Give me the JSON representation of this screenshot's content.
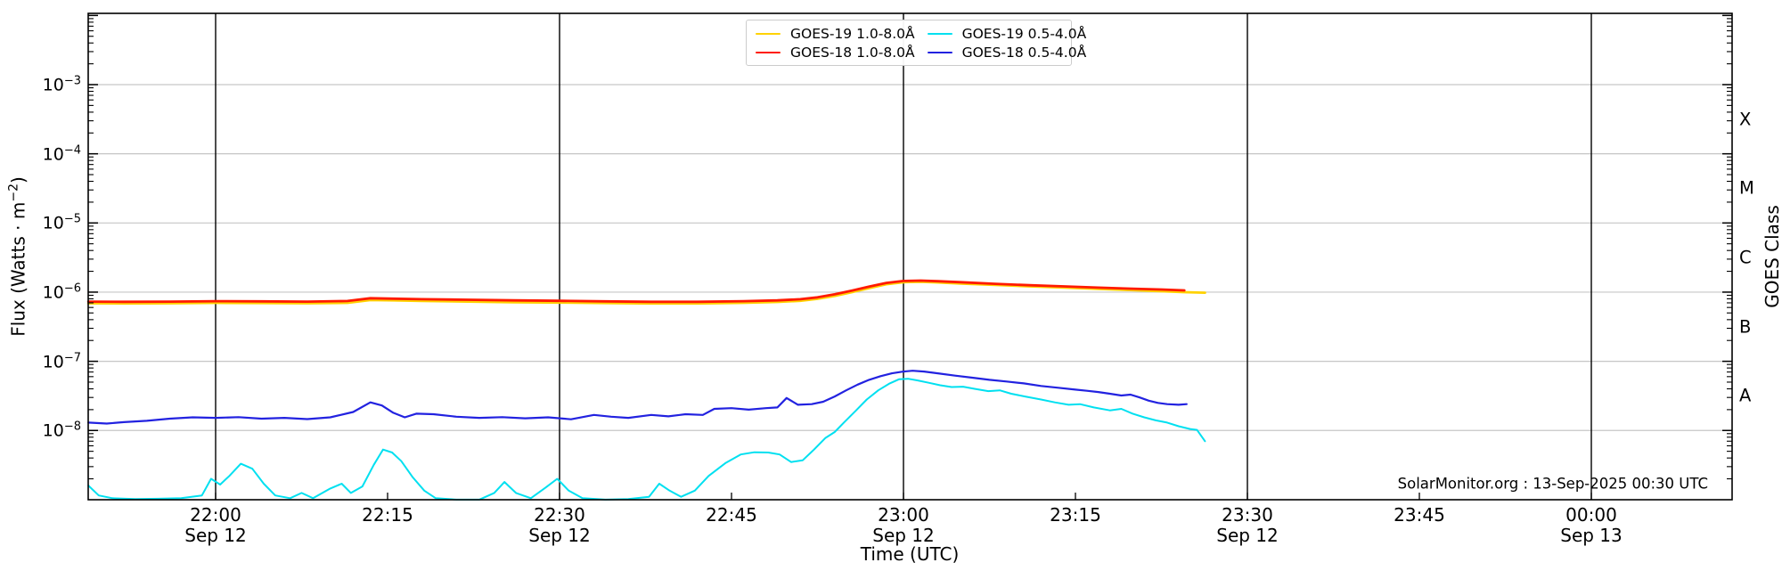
{
  "watermark": "SolarMonitor.org : 13-Sep-2025 00:30 UTC",
  "colors": {
    "background": "#ffffff",
    "frame": "#000000",
    "horizontal_grid": "#c6c6c6",
    "vertical_grid": "#000000",
    "goes19_long": "#ffd200",
    "goes18_long": "#ff1a00",
    "goes19_short": "#00e0f0",
    "goes18_short": "#2222e0"
  },
  "axes": {
    "x_label": "Time (UTC)",
    "y_label_left": {
      "text": "Flux (Watts · m⁻²)",
      "main": "Flux (Watts · m",
      "sup": "−2",
      "close": ")"
    },
    "y_label_right": "GOES Class",
    "x_ticks": [
      {
        "time": "22:00",
        "date": "Sep 12",
        "m": 12,
        "gridline": true
      },
      {
        "time": "22:15",
        "date": "",
        "m": 27,
        "gridline": false
      },
      {
        "time": "22:30",
        "date": "Sep 12",
        "m": 42,
        "gridline": true
      },
      {
        "time": "22:45",
        "date": "",
        "m": 57,
        "gridline": false
      },
      {
        "time": "23:00",
        "date": "Sep 12",
        "m": 72,
        "gridline": true
      },
      {
        "time": "23:15",
        "date": "",
        "m": 87,
        "gridline": false
      },
      {
        "time": "23:30",
        "date": "Sep 12",
        "m": 102,
        "gridline": true
      },
      {
        "time": "23:45",
        "date": "",
        "m": 117,
        "gridline": false
      },
      {
        "time": "00:00",
        "date": "Sep 13",
        "m": 132,
        "gridline": true
      }
    ],
    "y_ticks": [
      {
        "label": "10⁻³",
        "sup": "−3",
        "exp": -3
      },
      {
        "label": "10⁻⁴",
        "sup": "−4",
        "exp": -4
      },
      {
        "label": "10⁻⁵",
        "sup": "−5",
        "exp": -5
      },
      {
        "label": "10⁻⁶",
        "sup": "−6",
        "exp": -6
      },
      {
        "label": "10⁻⁷",
        "sup": "−7",
        "exp": -7
      },
      {
        "label": "10⁻⁸",
        "sup": "−8",
        "exp": -8
      }
    ],
    "class_labels": [
      {
        "label": "X",
        "log_center": -3.5
      },
      {
        "label": "M",
        "log_center": -4.5
      },
      {
        "label": "C",
        "log_center": -5.5
      },
      {
        "label": "B",
        "log_center": -6.5
      },
      {
        "label": "A",
        "log_center": -7.5
      }
    ]
  },
  "legend": [
    {
      "label": "GOES-19 1.0-8.0Å",
      "color": "#ffd200"
    },
    {
      "label": "GOES-18 1.0-8.0Å",
      "color": "#ff1a00"
    },
    {
      "label": "GOES-19 0.5-4.0Å",
      "color": "#00e0f0"
    },
    {
      "label": "GOES-18 0.5-4.0Å",
      "color": "#2222e0"
    }
  ],
  "chart_data": {
    "type": "line",
    "title": "",
    "xlabel": "Time (UTC)",
    "ylabel": "Flux (Watts · m⁻²)",
    "ylabel_right": "GOES Class",
    "y_scale": "log",
    "ylim": [
      1e-09,
      0.01
    ],
    "x_definition": "minutes after 21:48 UTC on 12-Sep-2025",
    "x_range_minutes": [
      0.9,
      143
    ],
    "x_gridline_times": [
      "22:00",
      "22:30",
      "23:00",
      "23:30",
      "00:00"
    ],
    "grid": "horizontal gray at each decade, vertical black every 30 min",
    "legend_position": "upper center",
    "goes_class_bands": {
      "A": [
        1e-08,
        1e-07
      ],
      "B": [
        1e-07,
        1e-06
      ],
      "C": [
        1e-06,
        1e-05
      ],
      "M": [
        1e-05,
        0.0001
      ],
      "X": [
        0.0001,
        0.001
      ]
    },
    "series": [
      {
        "name": "GOES-19 1.0-8.0Å",
        "color": "#ffd200",
        "points": [
          [
            0.9,
            6.9e-07
          ],
          [
            4,
            6.85e-07
          ],
          [
            8,
            6.9e-07
          ],
          [
            12,
            7e-07
          ],
          [
            16,
            6.95e-07
          ],
          [
            20,
            6.9e-07
          ],
          [
            23.5,
            7e-07
          ],
          [
            25.5,
            7.7e-07
          ],
          [
            27.5,
            7.6e-07
          ],
          [
            30,
            7.45e-07
          ],
          [
            34,
            7.3e-07
          ],
          [
            38,
            7.15e-07
          ],
          [
            42,
            7.05e-07
          ],
          [
            46,
            6.95e-07
          ],
          [
            50,
            6.85e-07
          ],
          [
            54,
            6.85e-07
          ],
          [
            58,
            7e-07
          ],
          [
            61,
            7.2e-07
          ],
          [
            63,
            7.5e-07
          ],
          [
            64.5,
            8e-07
          ],
          [
            66,
            8.8e-07
          ],
          [
            67.5,
            1e-06
          ],
          [
            69,
            1.14e-06
          ],
          [
            70.5,
            1.3e-06
          ],
          [
            72,
            1.39e-06
          ],
          [
            73.5,
            1.41e-06
          ],
          [
            75,
            1.38e-06
          ],
          [
            77,
            1.33e-06
          ],
          [
            80,
            1.27e-06
          ],
          [
            83,
            1.21e-06
          ],
          [
            86,
            1.16e-06
          ],
          [
            89,
            1.11e-06
          ],
          [
            92,
            1.07e-06
          ],
          [
            94.5,
            1.03e-06
          ],
          [
            96.5,
            1e-06
          ],
          [
            98.3,
            9.8e-07
          ]
        ]
      },
      {
        "name": "GOES-18 1.0-8.0Å",
        "color": "#ff1a00",
        "points": [
          [
            0.9,
            7.3e-07
          ],
          [
            4,
            7.25e-07
          ],
          [
            8,
            7.3e-07
          ],
          [
            12,
            7.4e-07
          ],
          [
            16,
            7.35e-07
          ],
          [
            20,
            7.3e-07
          ],
          [
            23.5,
            7.45e-07
          ],
          [
            25.5,
            8.15e-07
          ],
          [
            27.5,
            8.05e-07
          ],
          [
            30,
            7.9e-07
          ],
          [
            34,
            7.75e-07
          ],
          [
            38,
            7.6e-07
          ],
          [
            42,
            7.5e-07
          ],
          [
            46,
            7.35e-07
          ],
          [
            50,
            7.25e-07
          ],
          [
            54,
            7.25e-07
          ],
          [
            58,
            7.4e-07
          ],
          [
            61,
            7.6e-07
          ],
          [
            63,
            7.9e-07
          ],
          [
            64.5,
            8.4e-07
          ],
          [
            66,
            9.3e-07
          ],
          [
            67.5,
            1.05e-06
          ],
          [
            69,
            1.2e-06
          ],
          [
            70.5,
            1.36e-06
          ],
          [
            72,
            1.45e-06
          ],
          [
            73.5,
            1.47e-06
          ],
          [
            75,
            1.44e-06
          ],
          [
            77,
            1.39e-06
          ],
          [
            80,
            1.32e-06
          ],
          [
            83,
            1.26e-06
          ],
          [
            86,
            1.21e-06
          ],
          [
            89,
            1.16e-06
          ],
          [
            92,
            1.12e-06
          ],
          [
            94.5,
            1.09e-06
          ],
          [
            96.5,
            1.06e-06
          ]
        ]
      },
      {
        "name": "GOES-19 0.5-4.0Å",
        "color": "#00e0f0",
        "points": [
          [
            0.9,
            1.6e-09
          ],
          [
            1.8,
            1.15e-09
          ],
          [
            3,
            1.05e-09
          ],
          [
            5,
            1.02e-09
          ],
          [
            7,
            1.03e-09
          ],
          [
            9,
            1.05e-09
          ],
          [
            10.8,
            1.15e-09
          ],
          [
            11.6,
            2e-09
          ],
          [
            12.4,
            1.65e-09
          ],
          [
            13.2,
            2.2e-09
          ],
          [
            14.2,
            3.3e-09
          ],
          [
            15.2,
            2.8e-09
          ],
          [
            16.2,
            1.7e-09
          ],
          [
            17.2,
            1.15e-09
          ],
          [
            18.5,
            1.05e-09
          ],
          [
            19.5,
            1.25e-09
          ],
          [
            20.5,
            1.05e-09
          ],
          [
            22,
            1.45e-09
          ],
          [
            23,
            1.7e-09
          ],
          [
            23.8,
            1.25e-09
          ],
          [
            24.8,
            1.55e-09
          ],
          [
            25.8,
            3.2e-09
          ],
          [
            26.6,
            5.3e-09
          ],
          [
            27.4,
            4.8e-09
          ],
          [
            28.2,
            3.6e-09
          ],
          [
            29.2,
            2.1e-09
          ],
          [
            30.2,
            1.35e-09
          ],
          [
            31.2,
            1.05e-09
          ],
          [
            33,
            1e-09
          ],
          [
            35,
            1e-09
          ],
          [
            36.3,
            1.25e-09
          ],
          [
            37.2,
            1.8e-09
          ],
          [
            38.2,
            1.25e-09
          ],
          [
            39.5,
            1.05e-09
          ],
          [
            40.8,
            1.5e-09
          ],
          [
            41.8,
            2e-09
          ],
          [
            42.8,
            1.35e-09
          ],
          [
            44,
            1.05e-09
          ],
          [
            46,
            1e-09
          ],
          [
            48,
            1.02e-09
          ],
          [
            49.8,
            1.1e-09
          ],
          [
            50.7,
            1.7e-09
          ],
          [
            51.6,
            1.35e-09
          ],
          [
            52.6,
            1.1e-09
          ],
          [
            53.8,
            1.35e-09
          ],
          [
            55,
            2.2e-09
          ],
          [
            56.5,
            3.4e-09
          ],
          [
            57.8,
            4.5e-09
          ],
          [
            59,
            4.85e-09
          ],
          [
            60.2,
            4.8e-09
          ],
          [
            61.2,
            4.5e-09
          ],
          [
            62.2,
            3.5e-09
          ],
          [
            63.2,
            3.7e-09
          ],
          [
            64.2,
            5.3e-09
          ],
          [
            65.2,
            7.8e-09
          ],
          [
            66,
            9.5e-09
          ],
          [
            66.8,
            1.3e-08
          ],
          [
            67.8,
            1.9e-08
          ],
          [
            68.8,
            2.8e-08
          ],
          [
            69.8,
            3.8e-08
          ],
          [
            70.8,
            4.8e-08
          ],
          [
            71.6,
            5.5e-08
          ],
          [
            72.4,
            5.6e-08
          ],
          [
            73.2,
            5.3e-08
          ],
          [
            74.2,
            4.9e-08
          ],
          [
            75.2,
            4.5e-08
          ],
          [
            76.2,
            4.25e-08
          ],
          [
            77.2,
            4.3e-08
          ],
          [
            78.2,
            4e-08
          ],
          [
            79.4,
            3.7e-08
          ],
          [
            80.4,
            3.8e-08
          ],
          [
            81.4,
            3.4e-08
          ],
          [
            82.6,
            3.1e-08
          ],
          [
            84,
            2.8e-08
          ],
          [
            85.2,
            2.55e-08
          ],
          [
            86.4,
            2.35e-08
          ],
          [
            87.4,
            2.4e-08
          ],
          [
            88.6,
            2.15e-08
          ],
          [
            90,
            1.95e-08
          ],
          [
            91,
            2.05e-08
          ],
          [
            92,
            1.75e-08
          ],
          [
            93,
            1.55e-08
          ],
          [
            94,
            1.4e-08
          ],
          [
            95,
            1.3e-08
          ],
          [
            96,
            1.15e-08
          ],
          [
            97,
            1.05e-08
          ],
          [
            97.6,
            1.02e-08
          ],
          [
            98.3,
            7e-09
          ]
        ]
      },
      {
        "name": "GOES-18 0.5-4.0Å",
        "color": "#2222e0",
        "points": [
          [
            0.9,
            1.3e-08
          ],
          [
            2.5,
            1.26e-08
          ],
          [
            4,
            1.32e-08
          ],
          [
            6,
            1.38e-08
          ],
          [
            8,
            1.48e-08
          ],
          [
            10,
            1.55e-08
          ],
          [
            12,
            1.52e-08
          ],
          [
            14,
            1.56e-08
          ],
          [
            16,
            1.48e-08
          ],
          [
            18,
            1.52e-08
          ],
          [
            20,
            1.46e-08
          ],
          [
            22,
            1.55e-08
          ],
          [
            24,
            1.85e-08
          ],
          [
            25.5,
            2.55e-08
          ],
          [
            26.5,
            2.3e-08
          ],
          [
            27.5,
            1.8e-08
          ],
          [
            28.5,
            1.55e-08
          ],
          [
            29.5,
            1.75e-08
          ],
          [
            31,
            1.72e-08
          ],
          [
            33,
            1.58e-08
          ],
          [
            35,
            1.52e-08
          ],
          [
            37,
            1.56e-08
          ],
          [
            39,
            1.5e-08
          ],
          [
            41,
            1.55e-08
          ],
          [
            43,
            1.45e-08
          ],
          [
            45,
            1.68e-08
          ],
          [
            46.5,
            1.58e-08
          ],
          [
            48,
            1.52e-08
          ],
          [
            50,
            1.68e-08
          ],
          [
            51.5,
            1.6e-08
          ],
          [
            53,
            1.72e-08
          ],
          [
            54.5,
            1.68e-08
          ],
          [
            55.5,
            2.05e-08
          ],
          [
            57,
            2.1e-08
          ],
          [
            58.5,
            2e-08
          ],
          [
            60,
            2.1e-08
          ],
          [
            61,
            2.15e-08
          ],
          [
            61.8,
            2.95e-08
          ],
          [
            62.8,
            2.35e-08
          ],
          [
            64,
            2.4e-08
          ],
          [
            65,
            2.6e-08
          ],
          [
            66,
            3.1e-08
          ],
          [
            67,
            3.8e-08
          ],
          [
            68,
            4.6e-08
          ],
          [
            69,
            5.4e-08
          ],
          [
            70,
            6.1e-08
          ],
          [
            71,
            6.7e-08
          ],
          [
            72,
            7.1e-08
          ],
          [
            72.8,
            7.3e-08
          ],
          [
            73.8,
            7.1e-08
          ],
          [
            75,
            6.7e-08
          ],
          [
            76.5,
            6.2e-08
          ],
          [
            78,
            5.8e-08
          ],
          [
            79.5,
            5.4e-08
          ],
          [
            81,
            5.1e-08
          ],
          [
            82.5,
            4.8e-08
          ],
          [
            84,
            4.4e-08
          ],
          [
            85.5,
            4.15e-08
          ],
          [
            87,
            3.9e-08
          ],
          [
            88,
            3.75e-08
          ],
          [
            89,
            3.6e-08
          ],
          [
            90,
            3.4e-08
          ],
          [
            91,
            3.2e-08
          ],
          [
            91.8,
            3.3e-08
          ],
          [
            92.6,
            3e-08
          ],
          [
            93.4,
            2.7e-08
          ],
          [
            94.2,
            2.5e-08
          ],
          [
            95,
            2.4e-08
          ],
          [
            96,
            2.35e-08
          ],
          [
            96.7,
            2.4e-08
          ]
        ]
      }
    ]
  }
}
